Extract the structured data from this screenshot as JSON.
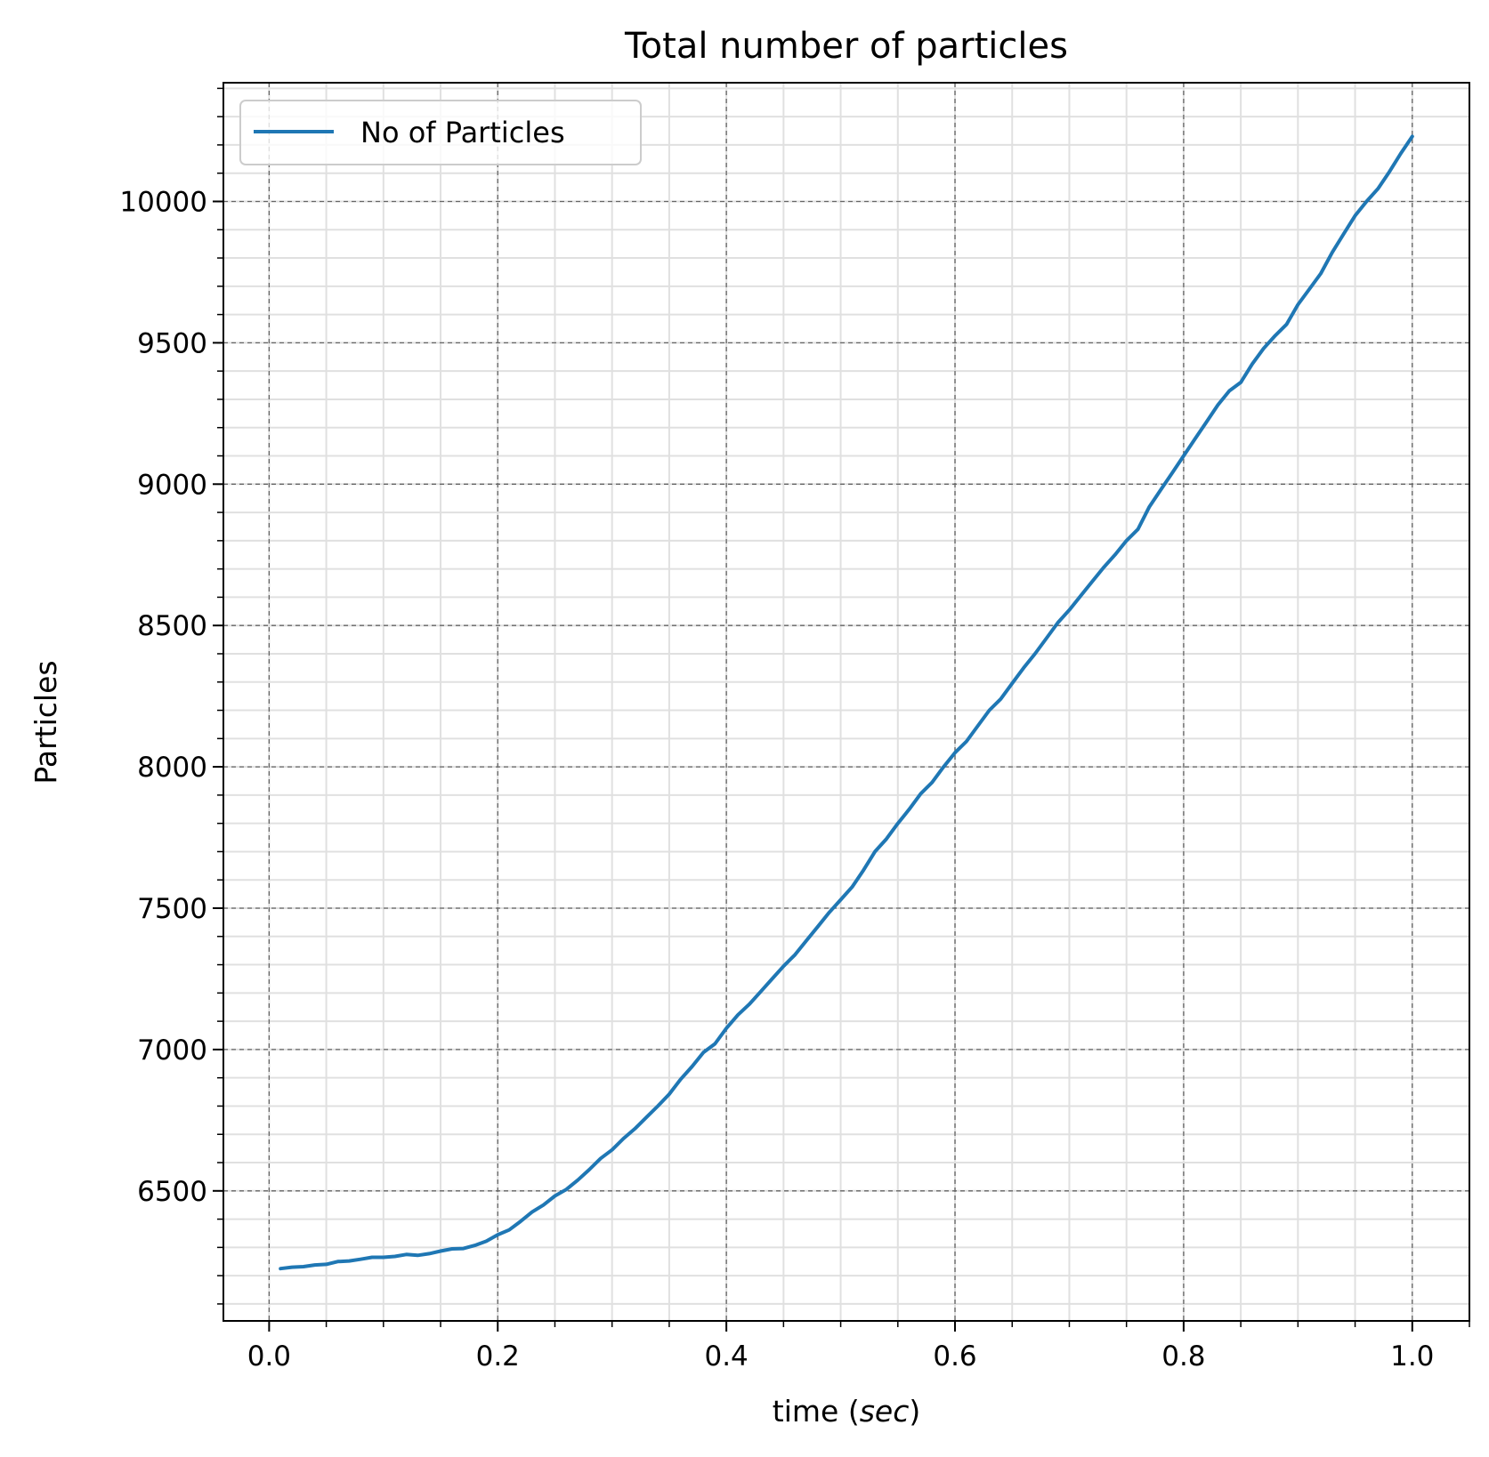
{
  "chart_data": {
    "type": "line",
    "title": "Total number of particles",
    "xlabel_prefix": "time (",
    "xlabel_unit": "sec",
    "xlabel_suffix": ")",
    "ylabel": "Particles",
    "xlim": [
      -0.04,
      1.05
    ],
    "ylim": [
      6040,
      10420
    ],
    "x_ticks": [
      0.0,
      0.2,
      0.4,
      0.6,
      0.8,
      1.0
    ],
    "x_tick_labels": [
      "0.0",
      "0.2",
      "0.4",
      "0.6",
      "0.8",
      "1.0"
    ],
    "y_ticks": [
      6500,
      7000,
      7500,
      8000,
      8500,
      9000,
      9500,
      10000
    ],
    "y_tick_labels": [
      "6500",
      "7000",
      "7500",
      "8000",
      "8500",
      "9000",
      "9500",
      "10000"
    ],
    "x_minor_step": 0.05,
    "y_minor_step": 100,
    "grid": "on",
    "legend_position": "top-left",
    "colors": {
      "series": "#1f77b4",
      "major_grid": "#666666",
      "minor_grid": "#e0e0e0"
    },
    "series": [
      {
        "name": "No of Particles",
        "x": [
          0.01,
          0.02,
          0.03,
          0.04,
          0.05,
          0.06,
          0.07,
          0.08,
          0.09,
          0.1,
          0.11,
          0.12,
          0.13,
          0.14,
          0.15,
          0.16,
          0.17,
          0.18,
          0.19,
          0.2,
          0.21,
          0.22,
          0.23,
          0.24,
          0.25,
          0.26,
          0.27,
          0.28,
          0.29,
          0.3,
          0.31,
          0.32,
          0.33,
          0.34,
          0.35,
          0.36,
          0.37,
          0.38,
          0.39,
          0.4,
          0.41,
          0.42,
          0.43,
          0.44,
          0.45,
          0.46,
          0.47,
          0.48,
          0.49,
          0.5,
          0.51,
          0.52,
          0.53,
          0.54,
          0.55,
          0.56,
          0.57,
          0.58,
          0.59,
          0.6,
          0.61,
          0.62,
          0.63,
          0.64,
          0.65,
          0.66,
          0.67,
          0.68,
          0.69,
          0.7,
          0.71,
          0.72,
          0.73,
          0.74,
          0.75,
          0.76,
          0.77,
          0.78,
          0.79,
          0.8,
          0.81,
          0.82,
          0.83,
          0.84,
          0.85,
          0.86,
          0.87,
          0.88,
          0.89,
          0.9,
          0.91,
          0.92,
          0.93,
          0.94,
          0.95,
          0.96,
          0.97,
          0.98,
          0.99,
          1.0
        ],
        "y": [
          6225,
          6230,
          6232,
          6238,
          6240,
          6250,
          6252,
          6258,
          6265,
          6265,
          6268,
          6275,
          6272,
          6278,
          6287,
          6295,
          6296,
          6307,
          6322,
          6345,
          6362,
          6392,
          6425,
          6450,
          6482,
          6505,
          6538,
          6575,
          6615,
          6645,
          6685,
          6720,
          6760,
          6800,
          6842,
          6895,
          6940,
          6990,
          7020,
          7075,
          7122,
          7160,
          7205,
          7250,
          7295,
          7335,
          7385,
          7435,
          7485,
          7530,
          7575,
          7635,
          7700,
          7745,
          7800,
          7850,
          7905,
          7945,
          8000,
          8050,
          8090,
          8145,
          8200,
          8240,
          8295,
          8350,
          8400,
          8455,
          8510,
          8555,
          8605,
          8655,
          8705,
          8750,
          8800,
          8840,
          8920,
          8980,
          9040,
          9100,
          9160,
          9220,
          9280,
          9330,
          9360,
          9425,
          9480,
          9525,
          9565,
          9635,
          9690,
          9745,
          9820,
          9885,
          9950,
          10000,
          10045,
          10105,
          10170,
          10230
        ]
      }
    ]
  }
}
